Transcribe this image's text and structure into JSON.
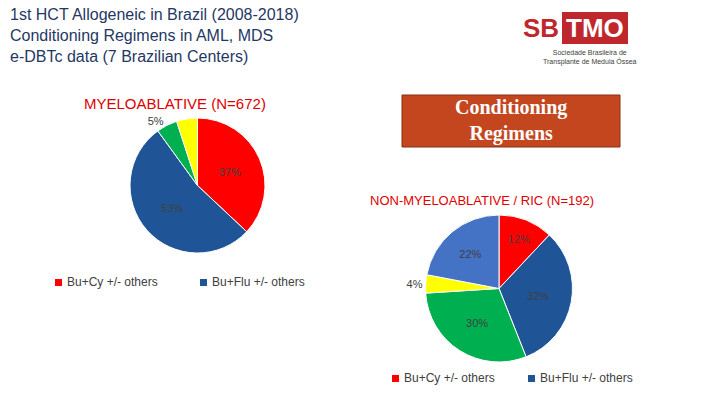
{
  "slide_title": [
    "1st HCT Allogeneic in Brazil (2008-2018)",
    "Conditioning Regimens in AML, MDS",
    "e-DBTc data (7 Brazilian Centers)"
  ],
  "logo": {
    "parts": [
      "SB",
      "TMO"
    ],
    "subtitle": [
      "Sociedade Brasileira de",
      "Transplante de Medula Óssea"
    ]
  },
  "banner": [
    "Conditioning",
    "Regimens"
  ],
  "chart_data": [
    {
      "type": "pie",
      "title": "MYELOABLATIVE (N=672)",
      "categories": [
        "Bu+Cy +/- others",
        "Bu+Flu +/- others",
        null,
        null
      ],
      "values": [
        37,
        53,
        5,
        5
      ],
      "value_labels": [
        "37%",
        "53%",
        "5%",
        null
      ],
      "colors": [
        "#ff0000",
        "#1f5597",
        "#00b050",
        "#ffff00"
      ],
      "data_labels": true
    },
    {
      "type": "pie",
      "title": "NON-MYELOABLATIVE / RIC (N=192)",
      "categories": [
        "Bu+Cy +/- others",
        "Bu+Flu +/- others",
        null,
        null,
        null
      ],
      "values": [
        12,
        32,
        30,
        4,
        22
      ],
      "value_labels": [
        "12%",
        "32%",
        "30%",
        "4%",
        "22%"
      ],
      "colors": [
        "#ff0000",
        "#1f5597",
        "#00b050",
        "#ffff00",
        "#4472c4"
      ],
      "data_labels": true
    }
  ]
}
